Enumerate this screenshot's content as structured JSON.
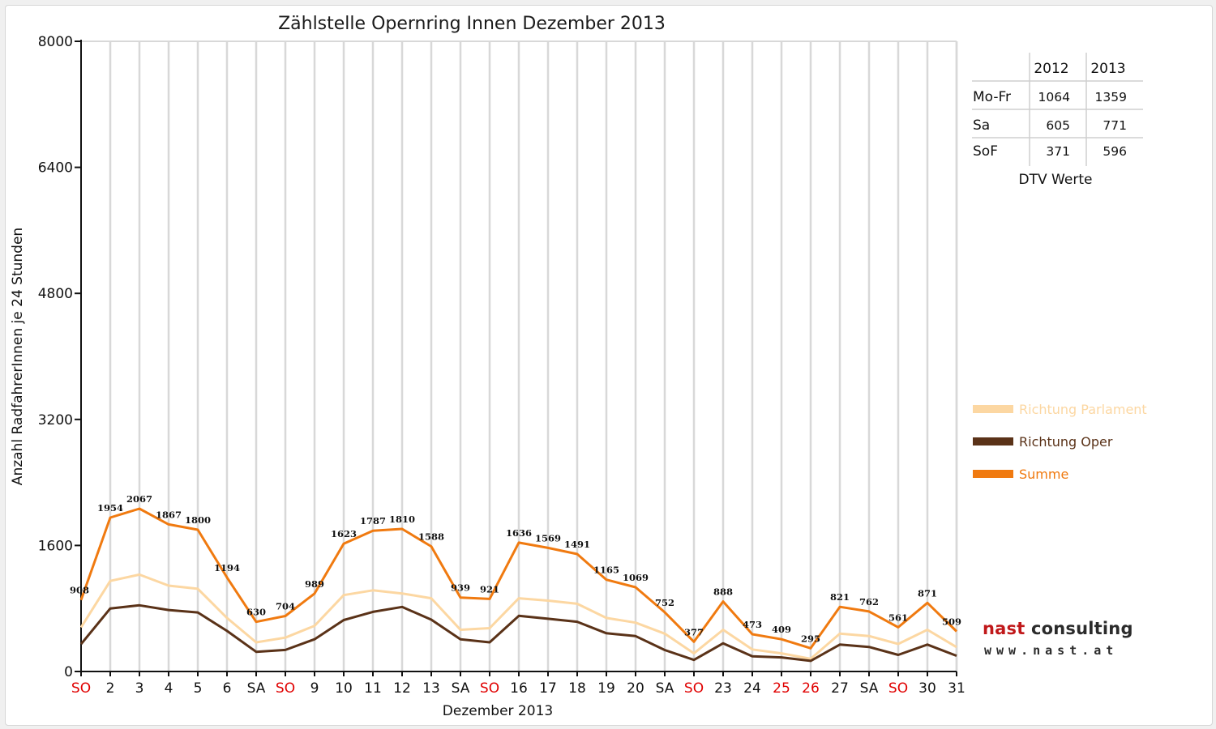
{
  "chart_data": {
    "type": "line",
    "title": "Zählstelle Opernring Innen Dezember 2013",
    "xlabel": "Dezember 2013",
    "ylabel": "Anzahl RadfahrerInnen je 24 Stunden",
    "ylim": [
      0,
      8000
    ],
    "yticks": [
      "0",
      "1600",
      "3200",
      "4800",
      "6400",
      "8000"
    ],
    "grid": "vertical",
    "legend_position": "right",
    "categories": [
      "SO",
      "2",
      "3",
      "4",
      "5",
      "6",
      "SA",
      "SO",
      "9",
      "10",
      "11",
      "12",
      "13",
      "SA",
      "SO",
      "16",
      "17",
      "18",
      "19",
      "20",
      "SA",
      "SO",
      "23",
      "24",
      "25",
      "26",
      "27",
      "SA",
      "SO",
      "30",
      "31"
    ],
    "red_categories": [
      0,
      7,
      14,
      21,
      24,
      25,
      28
    ],
    "series": [
      {
        "name": "Richtung Parlament",
        "color": "#fcd7a2",
        "values": [
          560,
          1150,
          1230,
          1090,
          1050,
          680,
          370,
          430,
          580,
          970,
          1030,
          990,
          930,
          530,
          550,
          930,
          900,
          860,
          680,
          620,
          480,
          230,
          530,
          280,
          230,
          160,
          480,
          450,
          350,
          530,
          310
        ]
      },
      {
        "name": "Richtung Oper",
        "color": "#5a3218",
        "values": [
          348,
          800,
          840,
          780,
          750,
          515,
          250,
          274,
          409,
          653,
          757,
          820,
          658,
          409,
          370,
          706,
          669,
          631,
          485,
          449,
          272,
          147,
          358,
          193,
          179,
          135,
          341,
          312,
          211,
          341,
          199
        ]
      },
      {
        "name": "Summe",
        "color": "#f07a10",
        "values": [
          908,
          1954,
          2067,
          1867,
          1800,
          1194,
          630,
          704,
          989,
          1623,
          1787,
          1810,
          1588,
          939,
          921,
          1636,
          1569,
          1491,
          1165,
          1069,
          752,
          377,
          888,
          473,
          409,
          295,
          821,
          762,
          561,
          871,
          509
        ]
      }
    ],
    "data_labels": [
      "908",
      "1954",
      "2067",
      "1867",
      "1800",
      "1194",
      "630",
      "704",
      "989",
      "1623",
      "1787",
      "1810",
      "1588",
      "939",
      "921",
      "1636",
      "1569",
      "1491",
      "1165",
      "1069",
      "752",
      "377",
      "888",
      "473",
      "409",
      "295",
      "821",
      "762",
      "561",
      "871",
      "509"
    ]
  },
  "dtv_table": {
    "caption": "DTV Werte",
    "columns": [
      "",
      "2012",
      "2013"
    ],
    "rows": [
      {
        "label": "Mo-Fr",
        "v2012": "1064",
        "v2013": "1359"
      },
      {
        "label": "Sa",
        "v2012": "605",
        "v2013": "771"
      },
      {
        "label": "SoF",
        "v2012": "371",
        "v2013": "596"
      }
    ]
  },
  "logo": {
    "name_part1": "nast",
    "name_part2": "consulting",
    "url": "www.nast.at"
  },
  "colors": {
    "red_day": "#e00000",
    "grid": "#d8d8d8",
    "logo_red": "#c0181a"
  }
}
